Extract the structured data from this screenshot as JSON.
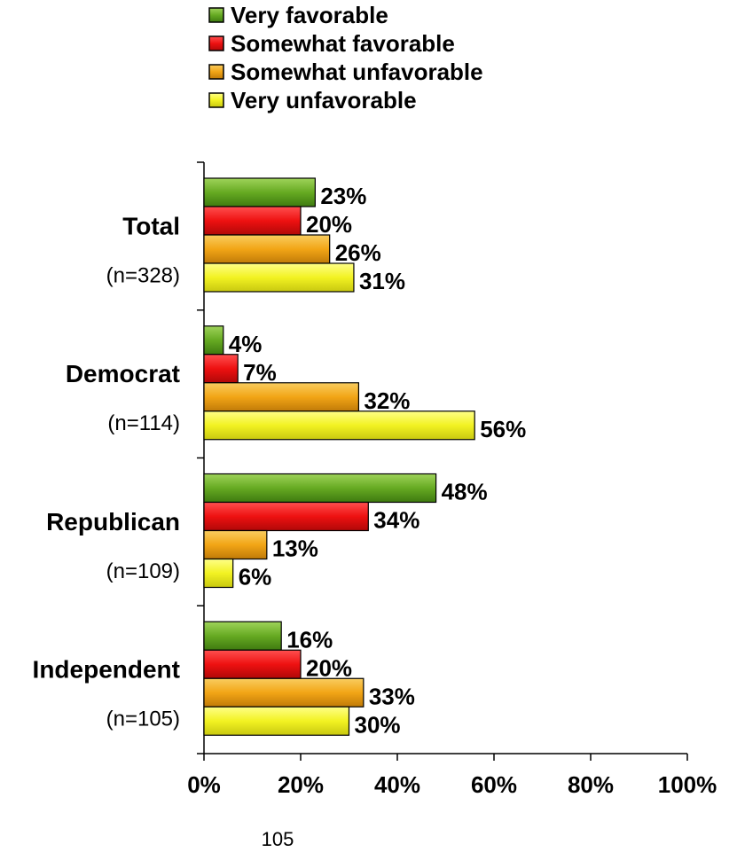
{
  "chart_data": {
    "type": "bar",
    "orientation": "horizontal",
    "categories": [
      {
        "label": "Total",
        "n": "(n=328)"
      },
      {
        "label": "Democrat",
        "n": "(n=114)"
      },
      {
        "label": "Republican",
        "n": "(n=109)"
      },
      {
        "label": "Independent",
        "n": "(n=105)"
      }
    ],
    "series": [
      {
        "name": "Very favorable",
        "color": "#66AA22",
        "values": [
          23,
          4,
          48,
          16
        ]
      },
      {
        "name": "Somewhat favorable",
        "color": "#EE1111",
        "values": [
          20,
          7,
          34,
          20
        ]
      },
      {
        "name": "Somewhat unfavorable",
        "color": "#F2A516",
        "values": [
          26,
          32,
          13,
          33
        ]
      },
      {
        "name": "Very unfavorable",
        "color": "#F2F222",
        "values": [
          31,
          56,
          6,
          30
        ]
      }
    ],
    "value_suffix": "%",
    "xlim": [
      0,
      100
    ],
    "xticks": [
      "0%",
      "20%",
      "40%",
      "60%",
      "80%",
      "100%"
    ],
    "grid": false,
    "legend_position": "top"
  },
  "page_number": "105"
}
